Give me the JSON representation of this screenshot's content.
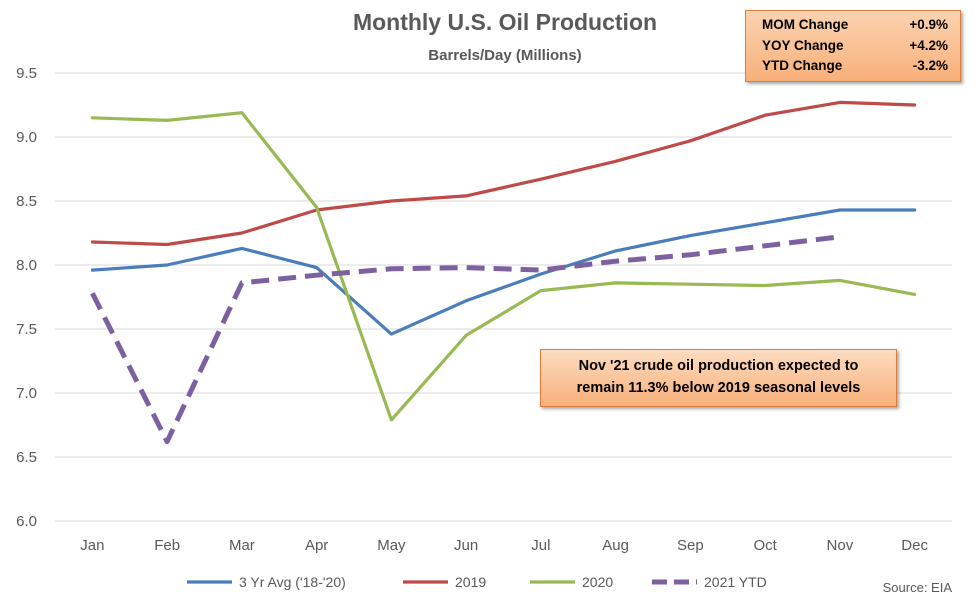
{
  "chart_data": {
    "type": "line",
    "title": "Monthly U.S. Oil Production",
    "subtitle": "Barrels/Day (Millions)",
    "categories": [
      "Jan",
      "Feb",
      "Mar",
      "Apr",
      "May",
      "Jun",
      "Jul",
      "Aug",
      "Sep",
      "Oct",
      "Nov",
      "Dec"
    ],
    "ylim": [
      6.0,
      9.5
    ],
    "yticks": [
      6.0,
      6.5,
      7.0,
      7.5,
      8.0,
      8.5,
      9.0,
      9.5
    ],
    "ytick_labels": [
      "6.0",
      "6.5",
      "7.0",
      "7.5",
      "8.0",
      "8.5",
      "9.0",
      "9.5"
    ],
    "grid": true,
    "legend_position": "bottom",
    "series": [
      {
        "name": "3 Yr Avg ('18-'20)",
        "color": "#4a7ebb",
        "dashed": false,
        "values": [
          7.96,
          8.0,
          8.13,
          7.98,
          7.46,
          7.72,
          7.93,
          8.11,
          8.23,
          8.33,
          8.43,
          8.43
        ]
      },
      {
        "name": "2019",
        "color": "#be4b48",
        "dashed": false,
        "values": [
          8.18,
          8.16,
          8.25,
          8.43,
          8.5,
          8.54,
          8.67,
          8.81,
          8.97,
          9.17,
          9.27,
          9.25
        ]
      },
      {
        "name": "2020",
        "color": "#98b954",
        "dashed": false,
        "values": [
          9.15,
          9.13,
          9.19,
          8.45,
          6.79,
          7.45,
          7.8,
          7.86,
          7.85,
          7.84,
          7.88,
          7.77
        ]
      },
      {
        "name": "2021 YTD",
        "color": "#7d60a0",
        "dashed": true,
        "values": [
          7.78,
          6.62,
          7.86,
          7.92,
          7.97,
          7.98,
          7.96,
          8.03,
          8.08,
          8.15,
          8.22,
          null
        ]
      }
    ],
    "source": "Source: EIA"
  },
  "stats": [
    {
      "label": "MOM Change",
      "value": "+0.9%"
    },
    {
      "label": "YOY Change",
      "value": "+4.2%"
    },
    {
      "label": "YTD Change",
      "value": "-3.2%"
    }
  ],
  "note": {
    "line1": "Nov '21 crude oil production expected to",
    "line2": "remain 11.3% below 2019 seasonal levels"
  }
}
